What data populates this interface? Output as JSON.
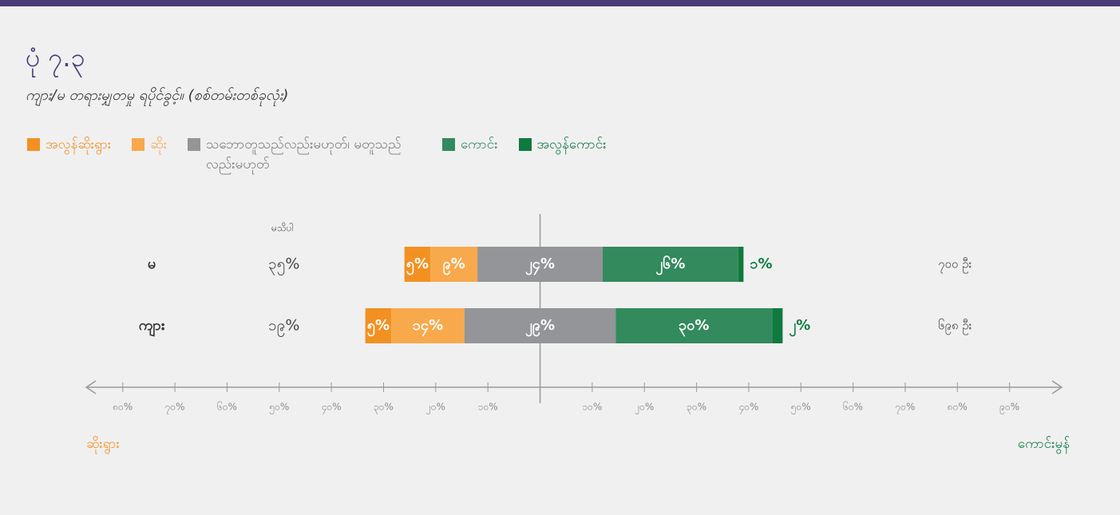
{
  "chart_data": {
    "type": "diverging_bar",
    "title": "ပုံ ၇.၃",
    "subtitle": "ကျား/မ တရားမျှတမှု ရပိုင်ခွင့်။  (စစ်တမ်းတစ်ခုလုံး)",
    "categories": [
      "မ",
      "ကျား"
    ],
    "series": [
      {
        "name": "အလွန်ဆိုးရွား",
        "color": "#f29122",
        "values": [
          5,
          5
        ],
        "value_labels": [
          "၅%",
          "၅%"
        ]
      },
      {
        "name": "ဆိုး",
        "color": "#f7a94b",
        "values": [
          9,
          14
        ],
        "value_labels": [
          "၉%",
          "၁၄%"
        ]
      },
      {
        "name": "သဘောတူသည်လည်းမဟုတ်၊ မတူသည်လည်းမဟုတ်",
        "color": "#939598",
        "values": [
          24,
          29
        ],
        "value_labels": [
          "၂၄%",
          "၂၉%"
        ]
      },
      {
        "name": "ကောင်း",
        "color": "#338a5c",
        "values": [
          26,
          30
        ],
        "value_labels": [
          "၂၆%",
          "၃၀%"
        ]
      },
      {
        "name": "အလွန်ကောင်း",
        "color": "#107a3e",
        "values": [
          1,
          2
        ],
        "value_labels": [
          "၁%",
          "၂%"
        ]
      }
    ],
    "dont_know": {
      "label": "မသိပါ",
      "values": [
        35,
        19
      ],
      "value_labels": [
        "၃၅%",
        "၁၉%"
      ]
    },
    "sample_size": {
      "values": [
        700,
        698
      ],
      "value_labels": [
        "၇၀၀ ဦး",
        "၆၉၈ ဦး"
      ]
    },
    "xlim": [
      -87,
      100
    ],
    "xticks": [
      {
        "value": -80,
        "label": "၈၀%"
      },
      {
        "value": -70,
        "label": "၇၀%"
      },
      {
        "value": -60,
        "label": "၆၀%"
      },
      {
        "value": -50,
        "label": "၅၀%"
      },
      {
        "value": -40,
        "label": "၄၀%"
      },
      {
        "value": -30,
        "label": "၃၀%"
      },
      {
        "value": -20,
        "label": "၂၀%"
      },
      {
        "value": -10,
        "label": "၁၀%"
      },
      {
        "value": 10,
        "label": "၁၀%"
      },
      {
        "value": 20,
        "label": "၂၀%"
      },
      {
        "value": 30,
        "label": "၃၀%"
      },
      {
        "value": 40,
        "label": "၄၀%"
      },
      {
        "value": 50,
        "label": "၅၀%"
      },
      {
        "value": 60,
        "label": "၆၀%"
      },
      {
        "value": 70,
        "label": "၇၀%"
      },
      {
        "value": 80,
        "label": "၈၀%"
      },
      {
        "value": 90,
        "label": "၉၀%"
      }
    ],
    "axis_labels": {
      "left": "ဆိုးရွား",
      "right": "ကောင်းမွန်"
    }
  }
}
